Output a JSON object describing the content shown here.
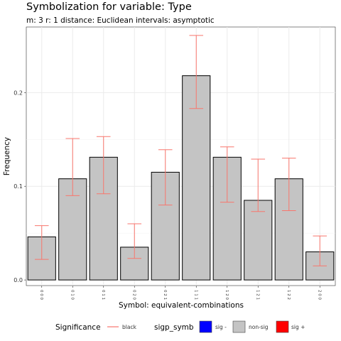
{
  "chart_data": {
    "type": "bar",
    "title": "Symbolization for variable: Type",
    "subtitle": "m: 3  r:  1  distance:  Euclidean  intervals:  asymptotic",
    "xlabel": "Symbol: equivalent-combinations",
    "ylabel": "Frequency",
    "ylim": [
      -0.006,
      0.27
    ],
    "yticks": [
      "0.0",
      "0.1",
      "0.2"
    ],
    "ytick_values": [
      0.0,
      0.1,
      0.2
    ],
    "categories": [
      "0 0 0",
      "0 1 0",
      "0 1 1",
      "0 2 0",
      "0 2 1",
      "1 1 1",
      "1 2 0",
      "1 2 1",
      "1 2 2",
      "2 0 0"
    ],
    "values": [
      0.046,
      0.108,
      0.131,
      0.035,
      0.115,
      0.218,
      0.131,
      0.085,
      0.108,
      0.03
    ],
    "ci_lower": [
      0.022,
      0.09,
      0.092,
      0.023,
      0.08,
      0.183,
      0.083,
      0.073,
      0.074,
      0.015
    ],
    "ci_upper": [
      0.058,
      0.151,
      0.153,
      0.06,
      0.139,
      0.261,
      0.142,
      0.129,
      0.13,
      0.047
    ],
    "fill_colors": [
      "#c4c4c4",
      "#c4c4c4",
      "#c4c4c4",
      "#c4c4c4",
      "#c4c4c4",
      "#c4c4c4",
      "#c4c4c4",
      "#c4c4c4",
      "#c4c4c4",
      "#c4c4c4"
    ],
    "errorbar_color": "#f8766d",
    "grid": true,
    "legend_position": "bottom",
    "legend": {
      "significance_title": "Significance",
      "significance_items": [
        {
          "label": "black",
          "color": "#f8766d"
        }
      ],
      "sigp_title": "sigp_symb",
      "sigp_items": [
        {
          "label": "sig -",
          "color": "#0000ff"
        },
        {
          "label": "non-sig",
          "color": "#c4c4c4"
        },
        {
          "label": "sig +",
          "color": "#ff0000"
        }
      ]
    }
  }
}
